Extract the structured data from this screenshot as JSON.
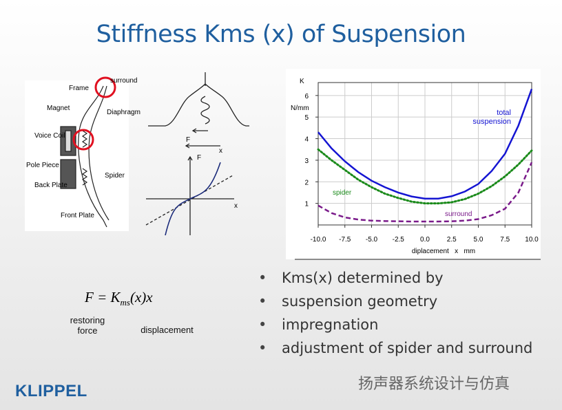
{
  "slide": {
    "title": "Stiffness Kms (x) of Suspension",
    "bullets": [
      "Kms(x) determined by",
      "suspension geometry",
      "impregnation",
      "adjustment of spider and surround"
    ],
    "formula": {
      "lhs": "F = K",
      "sub": "ms",
      "rhs": "(x)x"
    },
    "formula_labels": [
      "restoring force",
      "displacement"
    ],
    "logo": "KLIPPEL",
    "watermark": "扬声器系统设计与仿真"
  },
  "speaker_labels": [
    "Frame",
    "surround",
    "Magnet",
    "Diaphragm",
    "Voice Coil",
    "Pole Piece",
    "Back Plate",
    "Spider",
    "Front Plate"
  ],
  "sketch_labels": [
    "F",
    "x",
    "F",
    "x"
  ],
  "chart_data": {
    "type": "line",
    "y_label_top": "K",
    "y_label_unit": "N/mm",
    "x_label": "diplacement   x   mm",
    "x": [
      -10,
      -8.75,
      -7.5,
      -6.25,
      -5,
      -3.75,
      -2.5,
      -1.25,
      0,
      1.25,
      2.5,
      3.75,
      5,
      6.25,
      7.5,
      8.75,
      10
    ],
    "series": [
      {
        "name": "total suspension",
        "color": "#1414d2",
        "style": "solid",
        "values": [
          4.3,
          3.55,
          2.95,
          2.45,
          2.05,
          1.75,
          1.5,
          1.32,
          1.22,
          1.22,
          1.33,
          1.55,
          1.9,
          2.5,
          3.3,
          4.6,
          6.3
        ]
      },
      {
        "name": "spider",
        "color": "#1a8a1a",
        "style": "dotted",
        "values": [
          3.5,
          3.0,
          2.55,
          2.1,
          1.75,
          1.45,
          1.25,
          1.08,
          1.0,
          1.0,
          1.05,
          1.2,
          1.45,
          1.8,
          2.25,
          2.8,
          3.45
        ]
      },
      {
        "name": "surround",
        "color": "#7a1a8a",
        "style": "dashed",
        "values": [
          0.9,
          0.55,
          0.35,
          0.25,
          0.2,
          0.18,
          0.17,
          0.16,
          0.16,
          0.16,
          0.17,
          0.2,
          0.27,
          0.45,
          0.75,
          1.5,
          2.9
        ]
      }
    ],
    "xlim": [
      -10,
      10
    ],
    "ylim": [
      0,
      6.6
    ],
    "xticks": [
      {
        "value": -10,
        "label": "-10.0"
      },
      {
        "value": -7.5,
        "label": "-7.5"
      },
      {
        "value": -5,
        "label": "-5.0"
      },
      {
        "value": -2.5,
        "label": "-2.5"
      },
      {
        "value": 0,
        "label": "0.0"
      },
      {
        "value": 2.5,
        "label": "2.5"
      },
      {
        "value": 5,
        "label": "5.0"
      },
      {
        "value": 7.5,
        "label": "7.5"
      },
      {
        "value": 10,
        "label": "10.0"
      }
    ],
    "yticks": [
      1,
      2,
      3,
      4,
      5,
      6
    ],
    "grid": true
  }
}
